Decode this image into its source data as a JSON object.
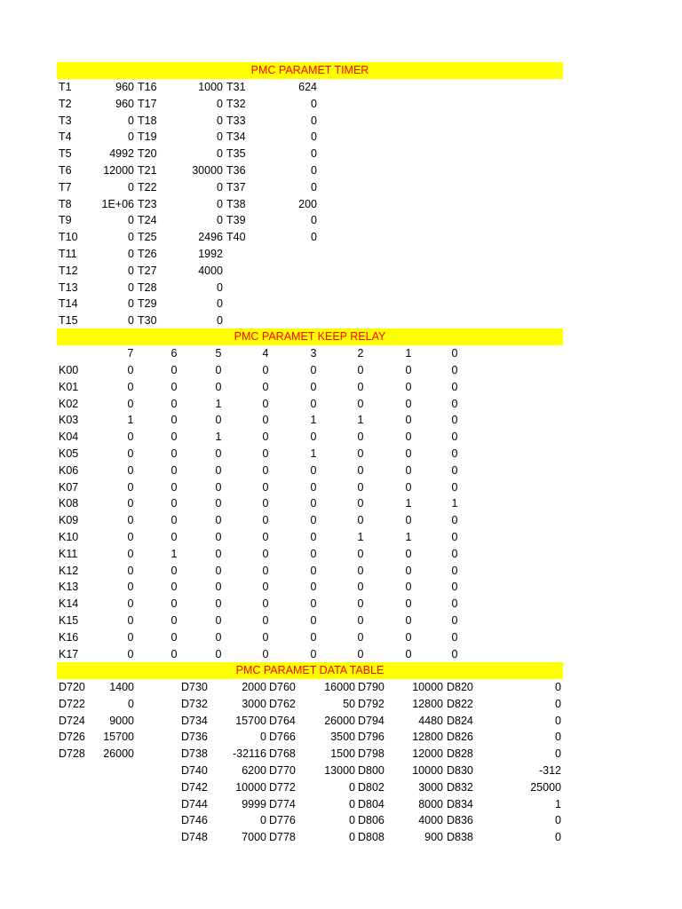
{
  "timer": {
    "title": "PMC PARAMET TIMER",
    "rows": [
      [
        "T1",
        "960",
        "T16",
        "1000",
        "T31",
        "624"
      ],
      [
        "T2",
        "960",
        "T17",
        "0",
        "T32",
        "0"
      ],
      [
        "T3",
        "0",
        "T18",
        "0",
        "T33",
        "0"
      ],
      [
        "T4",
        "0",
        "T19",
        "0",
        "T34",
        "0"
      ],
      [
        "T5",
        "4992",
        "T20",
        "0",
        "T35",
        "0"
      ],
      [
        "T6",
        "12000",
        "T21",
        "30000",
        "T36",
        "0"
      ],
      [
        "T7",
        "0",
        "T22",
        "0",
        "T37",
        "0"
      ],
      [
        "T8",
        "1E+06",
        "T23",
        "0",
        "T38",
        "200"
      ],
      [
        "T9",
        "0",
        "T24",
        "0",
        "T39",
        "0"
      ],
      [
        "T10",
        "0",
        "T25",
        "2496",
        "T40",
        "0"
      ],
      [
        "T11",
        "0",
        "T26",
        "1992",
        "",
        ""
      ],
      [
        "T12",
        "0",
        "T27",
        "4000",
        "",
        ""
      ],
      [
        "T13",
        "0",
        "T28",
        "0",
        "",
        ""
      ],
      [
        "T14",
        "0",
        "T29",
        "0",
        "",
        ""
      ],
      [
        "T15",
        "0",
        "T30",
        "0",
        "",
        ""
      ]
    ]
  },
  "keep_relay": {
    "title": "PMC PARAMET KEEP RELAY",
    "bit_headers": [
      "7",
      "6",
      "5",
      "4",
      "3",
      "2",
      "1",
      "0"
    ],
    "rows": [
      [
        "K00",
        "0",
        "0",
        "0",
        "0",
        "0",
        "0",
        "0",
        "0"
      ],
      [
        "K01",
        "0",
        "0",
        "0",
        "0",
        "0",
        "0",
        "0",
        "0"
      ],
      [
        "K02",
        "0",
        "0",
        "1",
        "0",
        "0",
        "0",
        "0",
        "0"
      ],
      [
        "K03",
        "1",
        "0",
        "0",
        "0",
        "1",
        "1",
        "0",
        "0"
      ],
      [
        "K04",
        "0",
        "0",
        "1",
        "0",
        "0",
        "0",
        "0",
        "0"
      ],
      [
        "K05",
        "0",
        "0",
        "0",
        "0",
        "1",
        "0",
        "0",
        "0"
      ],
      [
        "K06",
        "0",
        "0",
        "0",
        "0",
        "0",
        "0",
        "0",
        "0"
      ],
      [
        "K07",
        "0",
        "0",
        "0",
        "0",
        "0",
        "0",
        "0",
        "0"
      ],
      [
        "K08",
        "0",
        "0",
        "0",
        "0",
        "0",
        "0",
        "1",
        "1"
      ],
      [
        "K09",
        "0",
        "0",
        "0",
        "0",
        "0",
        "0",
        "0",
        "0"
      ],
      [
        "K10",
        "0",
        "0",
        "0",
        "0",
        "0",
        "1",
        "1",
        "0"
      ],
      [
        "K11",
        "0",
        "1",
        "0",
        "0",
        "0",
        "0",
        "0",
        "0"
      ],
      [
        "K12",
        "0",
        "0",
        "0",
        "0",
        "0",
        "0",
        "0",
        "0"
      ],
      [
        "K13",
        "0",
        "0",
        "0",
        "0",
        "0",
        "0",
        "0",
        "0"
      ],
      [
        "K14",
        "0",
        "0",
        "0",
        "0",
        "0",
        "0",
        "0",
        "0"
      ],
      [
        "K15",
        "0",
        "0",
        "0",
        "0",
        "0",
        "0",
        "0",
        "0"
      ],
      [
        "K16",
        "0",
        "0",
        "0",
        "0",
        "0",
        "0",
        "0",
        "0"
      ],
      [
        "K17",
        "0",
        "0",
        "0",
        "0",
        "0",
        "0",
        "0",
        "0"
      ]
    ]
  },
  "data_table": {
    "title": "PMC PARAMET DATA TABLE",
    "rows": [
      [
        "D720",
        "1400",
        "D730",
        "2000",
        "D760",
        "16000",
        "D790",
        "10000",
        "D820",
        "0"
      ],
      [
        "D722",
        "0",
        "D732",
        "3000",
        "D762",
        "50",
        "D792",
        "12800",
        "D822",
        "0"
      ],
      [
        "D724",
        "9000",
        "D734",
        "15700",
        "D764",
        "26000",
        "D794",
        "4480",
        "D824",
        "0"
      ],
      [
        "D726",
        "15700",
        "D736",
        "0",
        "D766",
        "3500",
        "D796",
        "12800",
        "D826",
        "0"
      ],
      [
        "D728",
        "26000",
        "D738",
        "-32116",
        "D768",
        "1500",
        "D798",
        "12000",
        "D828",
        "0"
      ],
      [
        "",
        "",
        "D740",
        "6200",
        "D770",
        "13000",
        "D800",
        "10000",
        "D830",
        "-312"
      ],
      [
        "",
        "",
        "D742",
        "10000",
        "D772",
        "0",
        "D802",
        "3000",
        "D832",
        "25000"
      ],
      [
        "",
        "",
        "D744",
        "9999",
        "D774",
        "0",
        "D804",
        "8000",
        "D834",
        "1"
      ],
      [
        "",
        "",
        "D746",
        "0",
        "D776",
        "0",
        "D806",
        "4000",
        "D836",
        "0"
      ],
      [
        "",
        "",
        "D748",
        "7000",
        "D778",
        "0",
        "D808",
        "900",
        "D838",
        "0"
      ]
    ]
  },
  "colors": {
    "banner_bg": "#ffff00",
    "banner_text": "#ff0000"
  }
}
